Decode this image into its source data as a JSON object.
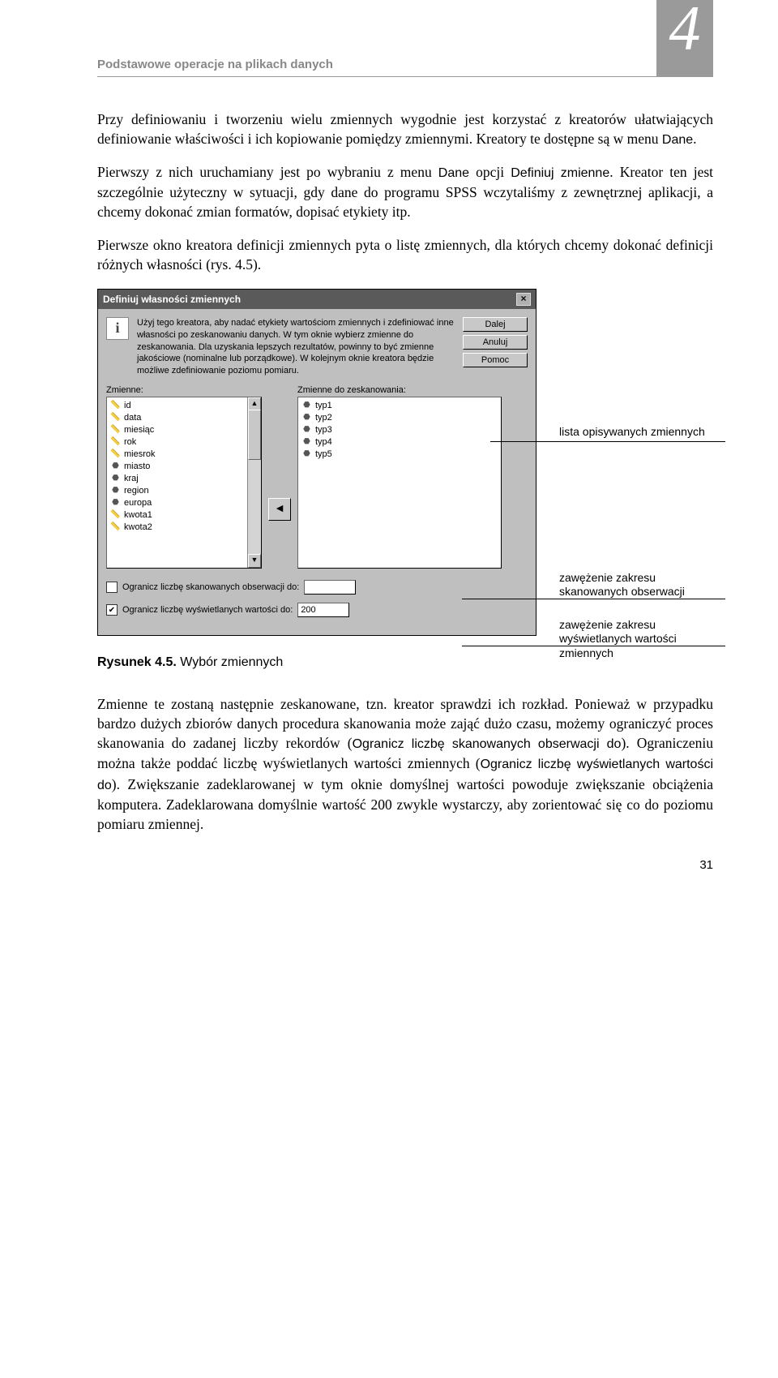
{
  "header": {
    "title": "Podstawowe operacje na plikach danych",
    "chapter_number": "4"
  },
  "paragraphs": {
    "p1_a": "Przy definiowaniu i tworzeniu wielu zmiennych wygodnie jest korzystać z kreatorów ułatwiających definiowanie właściwości i ich kopiowanie pomiędzy zmiennymi. Kreatory te dostępne są w menu ",
    "p1_b": "Dane",
    "p1_c": ".",
    "p2_a": "Pierwszy z nich uruchamiany jest po wybraniu z menu ",
    "p2_b": "Dane",
    "p2_c": " opcji ",
    "p2_d": "Definiuj zmienne",
    "p2_e": ". Kreator ten jest szczególnie użyteczny w sytuacji, gdy dane do programu SPSS wczytaliśmy z zewnętrznej aplikacji, a chcemy dokonać zmian formatów, dopisać etykiety itp.",
    "p3": "Pierwsze okno kreatora definicji zmiennych pyta o listę zmiennych, dla których chcemy dokonać definicji różnych własności (rys. 4.5).",
    "p4_a": "Zmienne te zostaną następnie zeskanowane, tzn. kreator sprawdzi ich rozkład. Ponieważ w przypadku bardzo dużych zbiorów danych procedura skanowania może zająć dużo czasu, możemy ograniczyć proces skanowania do zadanej liczby rekordów (",
    "p4_b": "Ogranicz liczbę skanowanych obserwacji do",
    "p4_c": "). Ograniczeniu można także poddać liczbę wyświetlanych wartości zmiennych (",
    "p4_d": "Ogranicz liczbę wyświetlanych wartości do",
    "p4_e": "). Zwiększanie zadeklarowanej w tym oknie domyślnej wartości powoduje zwiększanie obciążenia komputera. Zadeklarowana domyślnie wartość 200 zwykle wystarczy, aby zorientować się co do poziomu pomiaru zmiennej."
  },
  "dialog": {
    "title": "Definiuj własności zmiennych",
    "info_text": "Użyj tego kreatora, aby nadać etykiety wartościom zmiennych i zdefiniować inne własności po zeskanowaniu danych. W tym oknie wybierz zmienne do zeskanowania. Dla uzyskania lepszych rezultatów, powinny to być zmienne jakościowe (nominalne lub porządkowe). W kolejnym oknie kreatora będzie możliwe zdefiniowanie poziomu pomiaru.",
    "buttons": {
      "dalej": "Dalej",
      "anuluj": "Anuluj",
      "pomoc": "Pomoc"
    },
    "left_label": "Zmienne:",
    "right_label": "Zmienne do zeskanowania:",
    "left_items": [
      "id",
      "data",
      "miesiąc",
      "rok",
      "miesrok",
      "miasto",
      "kraj",
      "region",
      "europa",
      "kwota1",
      "kwota2"
    ],
    "left_icons": [
      "ruler",
      "ruler",
      "ruler",
      "ruler",
      "ruler",
      "nom",
      "nom",
      "nom",
      "nom",
      "ruler",
      "ruler"
    ],
    "right_items": [
      "typ1",
      "typ2",
      "typ3",
      "typ4",
      "typ5"
    ],
    "arrow": "◄",
    "check1_label": "Ogranicz liczbę skanowanych obserwacji do:",
    "check1_value": "",
    "check1_checked": false,
    "check2_label": "Ogranicz liczbę wyświetlanych wartości do:",
    "check2_value": "200",
    "check2_checked": true
  },
  "callouts": {
    "c1": "lista opisywanych zmiennych",
    "c2_l1": "zawężenie zakresu",
    "c2_l2": "skanowanych obserwacji",
    "c3_l1": "zawężenie zakresu",
    "c3_l2": "wyświetlanych wartości zmiennych"
  },
  "figure": {
    "label": "Rysunek 4.5.",
    "caption": " Wybór zmiennych"
  },
  "page_number": "31",
  "colors": {
    "header_gray": "#888888",
    "badge_bg": "#9a9a9a",
    "dialog_bg": "#bfbfbf",
    "dialog_title_bg": "#5a5a5a"
  }
}
